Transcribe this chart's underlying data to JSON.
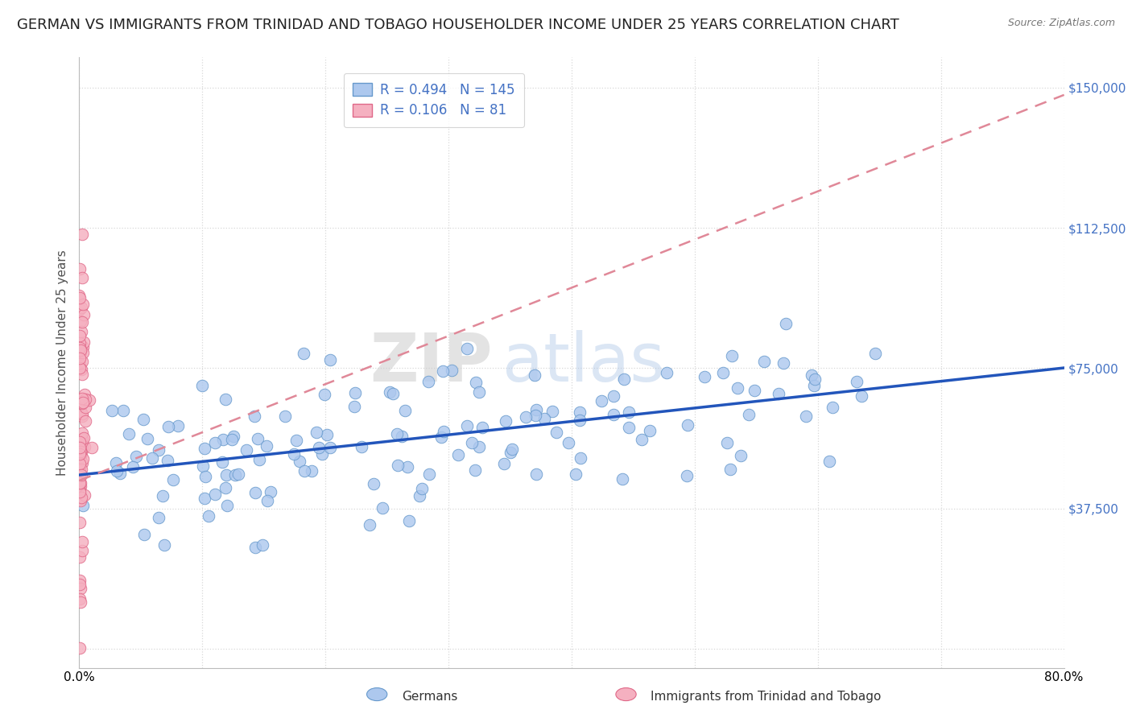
{
  "title": "GERMAN VS IMMIGRANTS FROM TRINIDAD AND TOBAGO HOUSEHOLDER INCOME UNDER 25 YEARS CORRELATION CHART",
  "source": "Source: ZipAtlas.com",
  "ylabel": "Householder Income Under 25 years",
  "xlim": [
    0.0,
    0.8
  ],
  "ylim": [
    -5000,
    158000
  ],
  "xticks": [
    0.0,
    0.1,
    0.2,
    0.3,
    0.4,
    0.5,
    0.6,
    0.7,
    0.8
  ],
  "xticklabels": [
    "0.0%",
    "",
    "",
    "",
    "",
    "",
    "",
    "",
    "80.0%"
  ],
  "yticks": [
    0,
    37500,
    75000,
    112500,
    150000
  ],
  "yticklabels": [
    "",
    "$37,500",
    "$75,000",
    "$112,500",
    "$150,000"
  ],
  "german_R": 0.494,
  "german_N": 145,
  "trinidad_R": 0.106,
  "trinidad_N": 81,
  "german_color": "#adc8ee",
  "german_edge_color": "#6699cc",
  "trinidad_color": "#f5b0c0",
  "trinidad_edge_color": "#e06888",
  "german_line_color": "#2255bb",
  "trinidad_line_color": "#e08898",
  "background_color": "#ffffff",
  "watermark_zip": "ZIP",
  "watermark_atlas": "atlas",
  "legend_german_label": "Germans",
  "legend_trinidad_label": "Immigrants from Trinidad and Tobago",
  "title_fontsize": 13,
  "axis_label_fontsize": 11,
  "tick_fontsize": 11,
  "legend_fontsize": 12,
  "ylabel_color": "#505050",
  "ytick_color": "#4472c4",
  "xtick_color": "#000000",
  "grid_color": "#d8d8d8",
  "seed": 99
}
